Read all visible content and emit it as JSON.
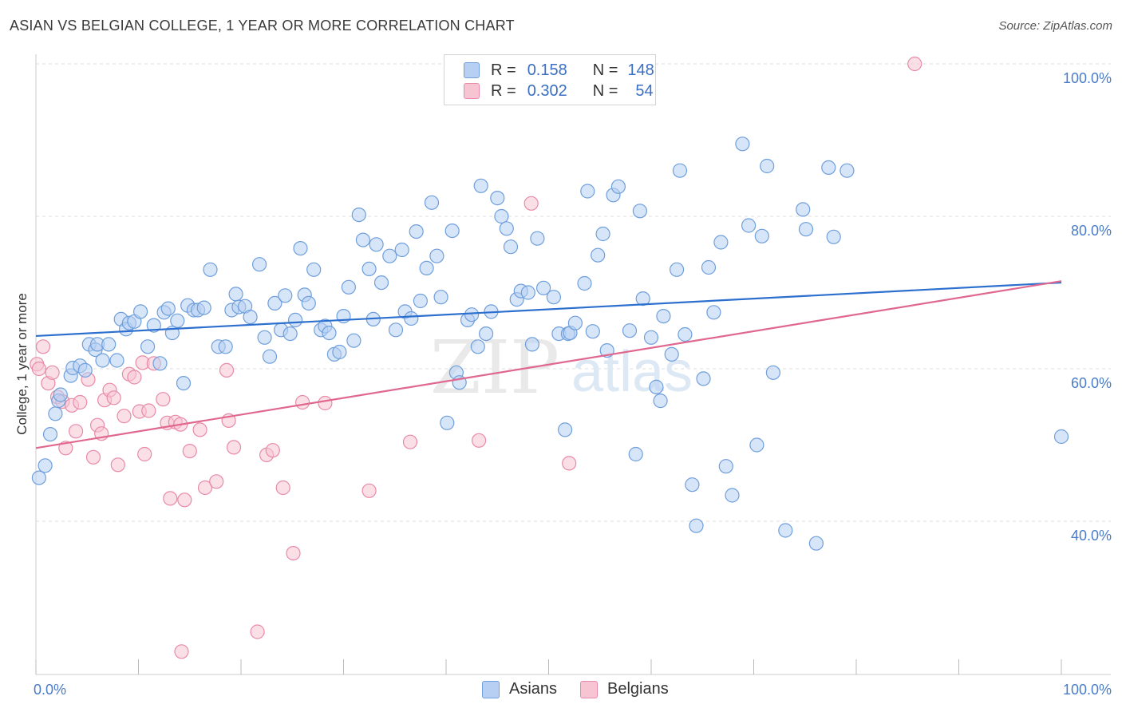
{
  "header": {
    "title": "ASIAN VS BELGIAN COLLEGE, 1 YEAR OR MORE CORRELATION CHART",
    "source": "Source: ZipAtlas.com"
  },
  "legend": {
    "rows": [
      {
        "r_label": "R =",
        "r_value": "0.158",
        "n_label": "N =",
        "n_value": "148"
      },
      {
        "r_label": "R =",
        "r_value": "0.302",
        "n_label": "N =",
        "n_value": "54"
      }
    ]
  },
  "watermark": {
    "zip": "ZIP",
    "atlas": "atlas"
  },
  "colors": {
    "asian_fill": "#b7cff2",
    "asian_stroke": "#6f9fdc",
    "asian_line": "#2c6fce",
    "belgian_fill": "#f7c4d3",
    "belgian_stroke": "#e88aa8",
    "belgian_line": "#e0688f",
    "axis_label": "#4a7cc9",
    "grid": "#dedede"
  },
  "chart_data": {
    "type": "scatter",
    "title": "ASIAN VS BELGIAN COLLEGE, 1 YEAR OR MORE CORRELATION CHART",
    "ylabel": "College, 1 year or more",
    "xlabel": "",
    "xlim": [
      0,
      100
    ],
    "ylim": [
      20,
      102
    ],
    "x_tick_labels": [
      "0.0%",
      "100.0%"
    ],
    "y_tick_labels": [
      "40.0%",
      "60.0%",
      "80.0%",
      "100.0%"
    ],
    "y_ticks": [
      40,
      60,
      80,
      100
    ],
    "grid": true,
    "legend_position": "bottom",
    "series": [
      {
        "name": "Asians",
        "r": 0.158,
        "n": 148,
        "trend": [
          [
            0,
            64.3
          ],
          [
            100,
            71.3
          ]
        ],
        "points": [
          [
            0.3,
            45.7
          ],
          [
            0.9,
            47.3
          ],
          [
            1.4,
            51.4
          ],
          [
            1.9,
            54.1
          ],
          [
            2.2,
            55.8
          ],
          [
            2.4,
            56.6
          ],
          [
            3.4,
            59.1
          ],
          [
            3.6,
            60.1
          ],
          [
            4.3,
            60.4
          ],
          [
            4.8,
            59.8
          ],
          [
            5.2,
            63.2
          ],
          [
            5.8,
            62.5
          ],
          [
            6.0,
            63.2
          ],
          [
            6.5,
            61.1
          ],
          [
            7.1,
            63.2
          ],
          [
            7.9,
            61.1
          ],
          [
            8.3,
            66.5
          ],
          [
            8.8,
            65.2
          ],
          [
            9.1,
            66.0
          ],
          [
            9.6,
            66.2
          ],
          [
            10.2,
            67.5
          ],
          [
            10.9,
            62.9
          ],
          [
            11.5,
            65.7
          ],
          [
            12.1,
            60.7
          ],
          [
            12.5,
            67.4
          ],
          [
            12.9,
            67.9
          ],
          [
            13.3,
            64.7
          ],
          [
            13.8,
            66.3
          ],
          [
            14.4,
            58.1
          ],
          [
            14.8,
            68.3
          ],
          [
            15.4,
            67.7
          ],
          [
            15.8,
            67.7
          ],
          [
            16.4,
            68.0
          ],
          [
            17.0,
            73.0
          ],
          [
            17.8,
            62.9
          ],
          [
            18.5,
            62.9
          ],
          [
            19.1,
            67.7
          ],
          [
            19.5,
            69.8
          ],
          [
            19.8,
            68.1
          ],
          [
            20.4,
            68.2
          ],
          [
            20.9,
            66.8
          ],
          [
            21.8,
            73.7
          ],
          [
            22.3,
            64.1
          ],
          [
            22.8,
            61.6
          ],
          [
            23.3,
            68.6
          ],
          [
            23.9,
            65.1
          ],
          [
            24.3,
            69.6
          ],
          [
            24.8,
            64.6
          ],
          [
            25.3,
            66.4
          ],
          [
            25.8,
            75.8
          ],
          [
            26.2,
            69.7
          ],
          [
            26.6,
            68.6
          ],
          [
            27.1,
            73.0
          ],
          [
            27.8,
            65.1
          ],
          [
            28.2,
            65.6
          ],
          [
            28.6,
            64.7
          ],
          [
            29.1,
            61.9
          ],
          [
            29.6,
            62.2
          ],
          [
            30.0,
            66.9
          ],
          [
            30.5,
            70.7
          ],
          [
            31.0,
            63.7
          ],
          [
            31.5,
            80.2
          ],
          [
            31.9,
            76.9
          ],
          [
            32.5,
            73.1
          ],
          [
            32.9,
            66.5
          ],
          [
            33.2,
            76.3
          ],
          [
            33.7,
            71.3
          ],
          [
            34.5,
            74.8
          ],
          [
            35.1,
            65.1
          ],
          [
            35.7,
            75.6
          ],
          [
            36.0,
            67.5
          ],
          [
            36.6,
            66.6
          ],
          [
            37.1,
            78.0
          ],
          [
            37.5,
            68.9
          ],
          [
            38.1,
            73.2
          ],
          [
            38.6,
            81.8
          ],
          [
            39.1,
            74.8
          ],
          [
            39.5,
            69.4
          ],
          [
            40.1,
            52.9
          ],
          [
            40.6,
            78.1
          ],
          [
            41.0,
            59.5
          ],
          [
            41.3,
            58.2
          ],
          [
            42.1,
            66.4
          ],
          [
            42.5,
            67.1
          ],
          [
            43.1,
            62.9
          ],
          [
            43.4,
            84.0
          ],
          [
            43.9,
            64.6
          ],
          [
            44.4,
            67.5
          ],
          [
            45.0,
            82.4
          ],
          [
            45.4,
            80.0
          ],
          [
            45.9,
            78.4
          ],
          [
            46.3,
            76.0
          ],
          [
            46.9,
            69.1
          ],
          [
            47.3,
            70.2
          ],
          [
            48.0,
            70.0
          ],
          [
            48.4,
            63.2
          ],
          [
            48.9,
            77.1
          ],
          [
            49.5,
            70.6
          ],
          [
            50.5,
            69.4
          ],
          [
            51.0,
            64.6
          ],
          [
            51.6,
            52.0
          ],
          [
            51.9,
            64.6
          ],
          [
            52.1,
            64.7
          ],
          [
            52.6,
            66.0
          ],
          [
            53.5,
            71.2
          ],
          [
            53.8,
            83.3
          ],
          [
            54.3,
            64.9
          ],
          [
            54.8,
            74.9
          ],
          [
            55.3,
            77.7
          ],
          [
            55.7,
            62.4
          ],
          [
            56.3,
            82.8
          ],
          [
            56.8,
            83.9
          ],
          [
            57.9,
            65.0
          ],
          [
            58.5,
            48.8
          ],
          [
            58.9,
            80.7
          ],
          [
            59.2,
            69.2
          ],
          [
            60.0,
            64.1
          ],
          [
            60.5,
            57.6
          ],
          [
            60.9,
            55.8
          ],
          [
            61.2,
            66.9
          ],
          [
            62.0,
            61.9
          ],
          [
            62.5,
            73.0
          ],
          [
            62.8,
            86.0
          ],
          [
            63.3,
            64.5
          ],
          [
            64.0,
            44.8
          ],
          [
            64.4,
            39.4
          ],
          [
            65.1,
            58.7
          ],
          [
            65.6,
            73.3
          ],
          [
            66.1,
            67.4
          ],
          [
            66.8,
            76.6
          ],
          [
            67.3,
            47.2
          ],
          [
            67.9,
            43.4
          ],
          [
            68.9,
            89.5
          ],
          [
            69.5,
            78.8
          ],
          [
            70.3,
            50.0
          ],
          [
            70.8,
            77.4
          ],
          [
            71.3,
            86.6
          ],
          [
            71.9,
            59.5
          ],
          [
            73.1,
            38.8
          ],
          [
            74.8,
            80.9
          ],
          [
            75.1,
            78.3
          ],
          [
            76.1,
            37.1
          ],
          [
            77.3,
            86.4
          ],
          [
            77.8,
            77.3
          ],
          [
            79.1,
            86.0
          ],
          [
            100.0,
            51.1
          ]
        ]
      },
      {
        "name": "Belgians",
        "r": 0.302,
        "n": 54,
        "trend": [
          [
            0,
            49.6
          ],
          [
            100,
            71.5
          ]
        ],
        "points": [
          [
            0.1,
            60.6
          ],
          [
            0.7,
            62.9
          ],
          [
            1.2,
            58.1
          ],
          [
            1.6,
            59.5
          ],
          [
            2.1,
            56.3
          ],
          [
            2.6,
            55.7
          ],
          [
            2.9,
            49.6
          ],
          [
            3.5,
            55.2
          ],
          [
            3.9,
            51.8
          ],
          [
            4.3,
            55.6
          ],
          [
            5.1,
            58.6
          ],
          [
            5.6,
            48.4
          ],
          [
            6.0,
            52.6
          ],
          [
            6.4,
            51.5
          ],
          [
            6.7,
            55.9
          ],
          [
            7.2,
            57.2
          ],
          [
            7.6,
            56.2
          ],
          [
            8.0,
            47.4
          ],
          [
            8.6,
            53.8
          ],
          [
            9.1,
            59.3
          ],
          [
            9.6,
            58.9
          ],
          [
            10.1,
            54.4
          ],
          [
            10.4,
            60.8
          ],
          [
            10.6,
            48.8
          ],
          [
            11.0,
            54.5
          ],
          [
            11.5,
            60.7
          ],
          [
            12.4,
            56.0
          ],
          [
            12.8,
            52.9
          ],
          [
            13.1,
            43.0
          ],
          [
            13.6,
            53.0
          ],
          [
            14.1,
            52.7
          ],
          [
            14.5,
            42.8
          ],
          [
            15.0,
            49.2
          ],
          [
            16.0,
            52.0
          ],
          [
            16.5,
            44.4
          ],
          [
            17.6,
            45.2
          ],
          [
            18.6,
            59.8
          ],
          [
            18.8,
            53.2
          ],
          [
            19.3,
            49.7
          ],
          [
            22.5,
            48.7
          ],
          [
            23.1,
            49.3
          ],
          [
            24.1,
            44.4
          ],
          [
            25.1,
            35.8
          ],
          [
            26.0,
            55.6
          ],
          [
            28.2,
            55.5
          ],
          [
            32.5,
            44.0
          ],
          [
            36.5,
            50.4
          ],
          [
            43.2,
            50.6
          ],
          [
            48.3,
            81.7
          ],
          [
            52.0,
            47.6
          ],
          [
            85.7,
            100.0
          ],
          [
            14.2,
            22.9
          ],
          [
            21.6,
            25.5
          ],
          [
            0.3,
            60.0
          ]
        ]
      }
    ]
  },
  "bottom_legend": {
    "asians_label": "Asians",
    "belgians_label": "Belgians"
  }
}
